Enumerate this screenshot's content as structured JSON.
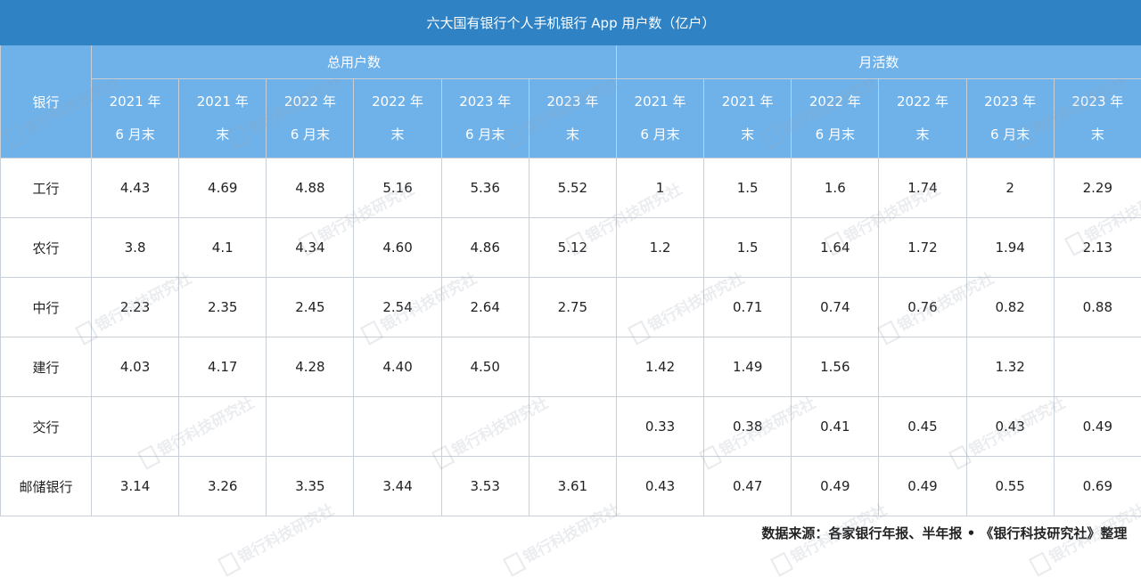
{
  "title": "六大国有银行个人手机银行 App 用户数（亿户）",
  "header": {
    "bank_label": "银行",
    "group_total": "总用户数",
    "group_mau": "月活数",
    "periods": [
      [
        "2021 年",
        "6 月末"
      ],
      [
        "2021 年",
        "末"
      ],
      [
        "2022 年",
        "6 月末"
      ],
      [
        "2022 年",
        "末"
      ],
      [
        "2023 年",
        "6 月末"
      ],
      [
        "2023 年",
        "末"
      ]
    ]
  },
  "rows": [
    {
      "bank": "工行",
      "total": [
        "4.43",
        "4.69",
        "4.88",
        "5.16",
        "5.36",
        "5.52"
      ],
      "mau": [
        "1",
        "1.5",
        "1.6",
        "1.74",
        "2",
        "2.29"
      ]
    },
    {
      "bank": "农行",
      "total": [
        "3.8",
        "4.1",
        "4.34",
        "4.60",
        "4.86",
        "5.12"
      ],
      "mau": [
        "1.2",
        "1.5",
        "1.64",
        "1.72",
        "1.94",
        "2.13"
      ]
    },
    {
      "bank": "中行",
      "total": [
        "2.23",
        "2.35",
        "2.45",
        "2.54",
        "2.64",
        "2.75"
      ],
      "mau": [
        "",
        "0.71",
        "0.74",
        "0.76",
        "0.82",
        "0.88"
      ]
    },
    {
      "bank": "建行",
      "total": [
        "4.03",
        "4.17",
        "4.28",
        "4.40",
        "4.50",
        ""
      ],
      "mau": [
        "1.42",
        "1.49",
        "1.56",
        "",
        "1.32",
        ""
      ]
    },
    {
      "bank": "交行",
      "total": [
        "",
        "",
        "",
        "",
        "",
        ""
      ],
      "mau": [
        "0.33",
        "0.38",
        "0.41",
        "0.45",
        "0.43",
        "0.49"
      ]
    },
    {
      "bank": "邮储银行",
      "total": [
        "3.14",
        "3.26",
        "3.35",
        "3.44",
        "3.53",
        "3.61"
      ],
      "mau": [
        "0.43",
        "0.47",
        "0.49",
        "0.49",
        "0.55",
        "0.69"
      ]
    }
  ],
  "source": "数据来源：各家银行年报、半年报 • 《银行科技研究社》整理",
  "watermark": "银行科技研究社"
}
